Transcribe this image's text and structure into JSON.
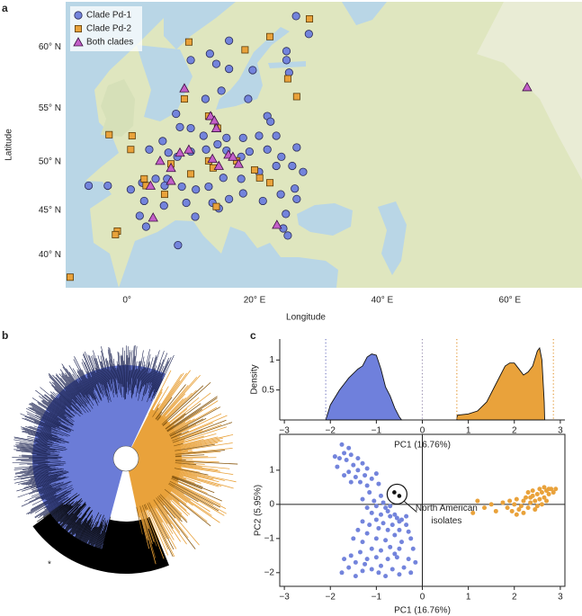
{
  "panel_labels": [
    "a",
    "b",
    "c"
  ],
  "tree": {
    "marker": "*"
  },
  "chart_data": [
    {
      "type": "map",
      "projection": "mercator",
      "xlabel": "Longitude",
      "ylabel": "Latitude",
      "xlim": [
        -9.6,
        71.3
      ],
      "ylim": [
        36,
        63.3
      ],
      "xticks": [
        {
          "value": 0,
          "label": "0°"
        },
        {
          "value": 20,
          "label": "20° E"
        },
        {
          "value": 40,
          "label": "40° E"
        },
        {
          "value": 60,
          "label": "60° E"
        }
      ],
      "yticks": [
        {
          "value": 40,
          "label": "40° N"
        },
        {
          "value": 45,
          "label": "45° N"
        },
        {
          "value": 50,
          "label": "50° N"
        },
        {
          "value": 55,
          "label": "55° N"
        },
        {
          "value": 60,
          "label": "60° N"
        }
      ],
      "legend": "upper left",
      "series": [
        {
          "name": "Clade Pd-1",
          "color": "#7384dc",
          "marker": "circle",
          "x": [
            26.5,
            28.5,
            16,
            13,
            10,
            14,
            16,
            19.7,
            25,
            25,
            25.4,
            14.8,
            12.3,
            19,
            22,
            22.5,
            7.7,
            8.3,
            10,
            12,
            15.6,
            18.2,
            20.7,
            23.4,
            5.6,
            3.5,
            6.5,
            7.9,
            10,
            12.4,
            14.2,
            15.6,
            17.9,
            19.2,
            22,
            24.2,
            26.6,
            25.9,
            27.6,
            23.4,
            20.7,
            17.9,
            15.1,
            12.8,
            10.8,
            8.6,
            6.3,
            4.5,
            2.4,
            0.6,
            -3,
            -6,
            2.7,
            5.8,
            9.3,
            13.4,
            16,
            18.2,
            21.3,
            24.1,
            26.3,
            26.6,
            24.9,
            2,
            3,
            8,
            10.7,
            14.4,
            25.2,
            24.5,
            5.9
          ],
          "values": [
            62.3,
            61,
            60.5,
            59.5,
            59,
            58.7,
            58.3,
            58.2,
            59.7,
            59,
            58,
            56.5,
            55.8,
            55.8,
            54.3,
            53.8,
            54.5,
            53.3,
            53.2,
            52.5,
            52.3,
            52.3,
            52.5,
            52.5,
            52,
            51.2,
            50.9,
            50.5,
            51,
            51.2,
            51.7,
            51.1,
            50.5,
            51,
            51.2,
            50.5,
            51.4,
            49.6,
            49,
            49.6,
            49,
            48.3,
            48.4,
            47.5,
            47.2,
            47.5,
            48.3,
            48.3,
            47.9,
            47.2,
            47.6,
            47.6,
            46,
            45.5,
            45.8,
            45.8,
            46.2,
            46.8,
            46,
            46.7,
            47.3,
            46.2,
            44.6,
            44.4,
            43.2,
            41.1,
            44.3,
            45.2,
            42.2,
            43,
            47.6
          ]
        },
        {
          "name": "Clade Pd-2",
          "color": "#e9a23b",
          "marker": "square",
          "x": [
            28.6,
            9.7,
            22.4,
            18.5,
            25.2,
            26.6,
            9,
            -2.8,
            0.8,
            0.6,
            12.8,
            14.2,
            12.8,
            13.5,
            20,
            20.8,
            22.4,
            6.9,
            10,
            2.7,
            3,
            5.9,
            -1.5,
            -1.8,
            14,
            -8.9,
            17.2
          ],
          "values": [
            62.1,
            60.4,
            60.8,
            59.8,
            57.5,
            56,
            55.8,
            52.6,
            52.5,
            51.2,
            54.3,
            53.2,
            50.1,
            49.4,
            49.2,
            48.4,
            47.9,
            49.8,
            48.8,
            48.3,
            47.6,
            46.7,
            42.7,
            42.3,
            45.4,
            37.3,
            50.1
          ]
        },
        {
          "name": "Both clades",
          "color": "#c35fc8",
          "marker": "triangle",
          "x": [
            9,
            62.7,
            13.1,
            13.7,
            14,
            9.7,
            8.3,
            5.2,
            6.9,
            13.4,
            15.9,
            16.6,
            17.5,
            14.4,
            6.9,
            3.7,
            4.1,
            23.5
          ],
          "values": [
            56.7,
            56.8,
            54.3,
            53.9,
            53.2,
            51.2,
            50.9,
            50.1,
            49.4,
            50.3,
            50.7,
            50.5,
            49.8,
            49.6,
            48.1,
            47.6,
            44.2,
            43.4
          ]
        }
      ]
    },
    {
      "type": "area",
      "xlabel": "PC1 (16.76%)",
      "ylabel": "Density",
      "xlim": [
        -3.1,
        3.1
      ],
      "ylim": [
        0,
        1.35
      ],
      "xticks": [
        {
          "value": -3,
          "label": "−3"
        },
        {
          "value": -2,
          "label": "−2"
        },
        {
          "value": -1,
          "label": "−1"
        },
        0,
        1,
        2,
        3
      ],
      "yticks": [
        0.5,
        1
      ],
      "vlines": [
        {
          "value": -2.1,
          "color": "#7b7fc4"
        },
        {
          "value": 0,
          "color": "#9a8fb0"
        },
        {
          "value": 0.75,
          "color": "#e39a3a"
        },
        {
          "value": 2.85,
          "color": "#e39a3a"
        }
      ],
      "series": [
        {
          "color": "#6f80dc",
          "x": [
            -2.1,
            -2.0,
            -1.8,
            -1.6,
            -1.4,
            -1.3,
            -1.2,
            -1.1,
            -1.0,
            -0.9,
            -0.8,
            -0.7,
            -0.6,
            -0.5,
            -0.45
          ],
          "values": [
            0,
            0.25,
            0.5,
            0.7,
            0.85,
            0.9,
            1.05,
            1.1,
            1.08,
            0.85,
            0.55,
            0.4,
            0.2,
            0.05,
            0
          ]
        },
        {
          "color": "#e9a23b",
          "x": [
            0.75,
            0.76,
            1.0,
            1.2,
            1.4,
            1.6,
            1.8,
            1.9,
            2.0,
            2.1,
            2.2,
            2.3,
            2.4,
            2.5,
            2.55,
            2.6,
            2.65,
            2.66
          ],
          "values": [
            0,
            0.08,
            0.1,
            0.15,
            0.3,
            0.6,
            0.9,
            0.95,
            0.95,
            0.85,
            0.75,
            0.8,
            0.9,
            1.15,
            1.2,
            1.0,
            0.3,
            0
          ]
        }
      ]
    },
    {
      "type": "scatter",
      "xlabel": "PC1 (16.76%)",
      "ylabel": "PC2 (5.95%)",
      "xlim": [
        -3.1,
        3.1
      ],
      "ylim": [
        -2.4,
        2.05
      ],
      "zero_lines": true,
      "xticks": [
        {
          "value": -3,
          "label": "−3"
        },
        {
          "value": -2,
          "label": "−2"
        },
        {
          "value": -1,
          "label": "−1"
        },
        0,
        1,
        2,
        3
      ],
      "yticks": [
        {
          "value": -2,
          "label": "−2"
        },
        {
          "value": -1,
          "label": "−1"
        },
        0,
        1
      ],
      "annotation": {
        "lines": [
          "North American",
          "isolates"
        ],
        "x": -0.55,
        "y": 0.3
      },
      "series": [
        {
          "color": "#7384dc",
          "x": [
            -1.75,
            -1.7,
            -1.8,
            -1.65,
            -1.55,
            -1.5,
            -1.85,
            -1.6,
            -1.4,
            -1.3,
            -1.45,
            -1.25,
            -1.35,
            -1.2,
            -1.55,
            -1.1,
            -1.0,
            -0.95,
            -1.15,
            -1.05,
            -0.9,
            -1.3,
            -0.85,
            -0.8,
            -1.0,
            -1.2,
            -0.75,
            -0.9,
            -1.1,
            -0.7,
            -1.0,
            -0.6,
            -0.85,
            -0.5,
            -0.55,
            -0.45,
            -0.65,
            -0.75,
            -0.95,
            -1.15,
            -1.3,
            -0.5,
            -0.35,
            -0.3,
            -0.6,
            -1.2,
            -1.4,
            -1.5,
            -1.3,
            -1.0,
            -0.8,
            -0.45,
            -0.25,
            -0.2,
            -0.5,
            -0.7,
            -0.9,
            -1.1,
            -1.35,
            -1.55,
            -1.7,
            -1.45,
            -1.2,
            -1.0,
            -0.75,
            -0.55,
            -0.3,
            -0.15,
            -0.4,
            -0.65,
            -0.9,
            -1.1,
            -1.3,
            -1.6,
            -1.75,
            -0.8,
            -0.5,
            -0.25,
            -1.45,
            -1.9,
            -1.6,
            -1.4,
            -1.7,
            -1.2,
            -0.7,
            -0.35,
            -0.6,
            -1.25,
            -0.95
          ],
          "values": [
            1.75,
            1.5,
            1.35,
            1.3,
            1.45,
            1.15,
            1.1,
            0.95,
            1.0,
            1.2,
            0.8,
            0.85,
            0.65,
            0.55,
            0.65,
            0.75,
            0.9,
            0.6,
            0.35,
            0.1,
            0.25,
            0.15,
            0.05,
            -0.1,
            -0.05,
            -0.1,
            -0.2,
            -0.3,
            -0.25,
            -0.35,
            -0.45,
            -0.3,
            -0.55,
            -0.5,
            -0.4,
            -0.45,
            -0.6,
            -0.75,
            -0.7,
            -0.6,
            -0.5,
            -0.75,
            -0.6,
            -0.8,
            -0.9,
            -0.85,
            -0.75,
            -1.0,
            -1.1,
            -1.0,
            -1.05,
            -1.1,
            -1.0,
            -1.3,
            -1.3,
            -1.25,
            -1.35,
            -1.3,
            -1.4,
            -1.5,
            -1.6,
            -1.7,
            -1.6,
            -1.55,
            -1.6,
            -1.55,
            -1.6,
            -1.7,
            -1.85,
            -1.9,
            -1.8,
            -1.9,
            -1.95,
            -1.85,
            -2.0,
            -2.1,
            -2.05,
            -2.0,
            -2.1,
            1.4,
            1.65,
            1.35,
            0.85,
            1.05,
            -0.05,
            -0.35,
            -1.45,
            -1.75,
            -2.0
          ]
        },
        {
          "color": "#e9a23b",
          "x": [
            1.1,
            1.2,
            1.35,
            1.5,
            1.6,
            1.75,
            1.85,
            1.95,
            2.0,
            2.05,
            2.1,
            2.15,
            2.2,
            2.25,
            2.3,
            2.35,
            2.4,
            2.45,
            2.5,
            2.55,
            2.6,
            2.65,
            2.7,
            2.75,
            2.8,
            2.85,
            2.9,
            2.3,
            2.45,
            2.6,
            2.55,
            2.7,
            2.2,
            2.4,
            2.05,
            1.9,
            2.65,
            2.75,
            2.35,
            2.5
          ],
          "values": [
            -0.25,
            0.1,
            -0.1,
            0.0,
            -0.2,
            0.05,
            -0.1,
            -0.2,
            0.0,
            0.15,
            -0.15,
            -0.05,
            0.1,
            0.2,
            -0.1,
            0.05,
            0.25,
            0.1,
            0.3,
            0.15,
            0.35,
            0.2,
            0.4,
            0.3,
            0.45,
            0.35,
            0.45,
            0.35,
            -0.15,
            0.0,
            0.45,
            0.1,
            -0.25,
            0.4,
            -0.3,
            0.1,
            0.5,
            0.45,
            0.2,
            -0.05
          ]
        }
      ]
    }
  ]
}
